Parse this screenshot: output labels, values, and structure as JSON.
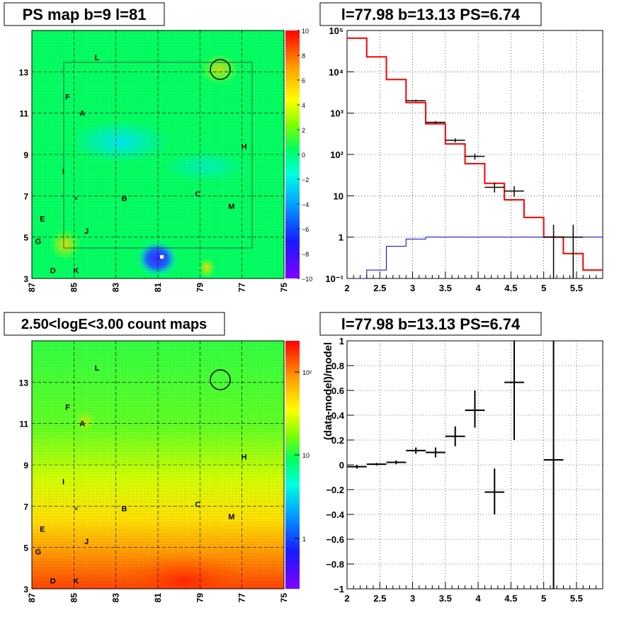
{
  "panels": {
    "ps_map": {
      "title": "PS map b=9 l=81",
      "x_ticks": [
        "87",
        "85",
        "83",
        "81",
        "79",
        "77",
        "75"
      ],
      "y_ticks": [
        "3",
        "5",
        "7",
        "9",
        "11",
        "13"
      ],
      "colorbar_ticks": [
        "10",
        "8",
        "6",
        "4",
        "2",
        "0",
        "−2",
        "−4",
        "−6",
        "−8",
        "−10"
      ]
    },
    "count_map": {
      "title": "2.50<logE<3.00 count maps",
      "x_ticks": [
        "87",
        "85",
        "83",
        "81",
        "79",
        "77",
        "75"
      ],
      "y_ticks": [
        "3",
        "5",
        "7",
        "9",
        "11",
        "13"
      ],
      "colorbar_ticks": [
        "10²",
        "10",
        "1"
      ]
    },
    "source_labels": [
      {
        "t": "L",
        "l": 83.9,
        "b": 13.7
      },
      {
        "t": "F",
        "l": 85.3,
        "b": 11.8
      },
      {
        "t": "A",
        "l": 84.6,
        "b": 11.0
      },
      {
        "t": "H",
        "l": 76.9,
        "b": 9.4
      },
      {
        "t": "I",
        "l": 85.5,
        "b": 8.2
      },
      {
        "t": "B",
        "l": 82.6,
        "b": 6.9
      },
      {
        "t": "C",
        "l": 79.1,
        "b": 7.1
      },
      {
        "t": "M",
        "l": 77.5,
        "b": 6.5
      },
      {
        "t": "E",
        "l": 86.5,
        "b": 5.9
      },
      {
        "t": "J",
        "l": 84.4,
        "b": 5.3
      },
      {
        "t": "G",
        "l": 86.7,
        "b": 4.8
      },
      {
        "t": "D",
        "l": 86.0,
        "b": 3.4
      },
      {
        "t": "K",
        "l": 84.9,
        "b": 3.4
      }
    ],
    "spectrum": {
      "title": "l=77.98 b=13.13 PS=6.74"
    },
    "residual": {
      "title": "l=77.98 b=13.13 PS=6.74",
      "ylabel": "(data-model)/model"
    }
  },
  "chart_data": [
    {
      "type": "heatmap",
      "title": "PS map b=9 l=81",
      "x_range": [
        87,
        75
      ],
      "y_range": [
        3,
        15
      ],
      "z_range": [
        -10,
        10
      ],
      "marked_position": {
        "l": 77.98,
        "b": 13.13
      }
    },
    {
      "type": "heatmap",
      "title": "2.50<logE<3.00 count maps",
      "x_range": [
        87,
        75
      ],
      "y_range": [
        3,
        15
      ],
      "z_scale": "log",
      "z_range": [
        0.3,
        300
      ],
      "marked_position": {
        "l": 77.98,
        "b": 13.13
      }
    },
    {
      "type": "line",
      "title": "l=77.98 b=13.13 PS=6.74",
      "yscale": "log",
      "xlim": [
        2,
        5.9
      ],
      "ylim": [
        0.1,
        100000
      ],
      "grid": true,
      "bin_edges": [
        2.0,
        2.3,
        2.6,
        2.9,
        3.2,
        3.5,
        3.8,
        4.1,
        4.4,
        4.7,
        5.0,
        5.3,
        5.6,
        5.9
      ],
      "series": [
        {
          "color": "#ff0000",
          "values": [
            65000,
            23000,
            6500,
            1800,
            550,
            180,
            60,
            20,
            8,
            3,
            1,
            0.4,
            0.16
          ]
        },
        {
          "color": "#0000cc",
          "values": [
            0.1,
            0.16,
            0.6,
            0.9,
            1,
            1,
            1,
            1,
            1,
            1,
            1,
            1,
            1
          ]
        },
        {
          "color": "#000000",
          "points": [
            {
              "x": 3.05,
              "y": 2000,
              "lo": 1900,
              "hi": 2100
            },
            {
              "x": 3.35,
              "y": 600,
              "lo": 560,
              "hi": 640
            },
            {
              "x": 3.65,
              "y": 220,
              "lo": 195,
              "hi": 245
            },
            {
              "x": 3.95,
              "y": 90,
              "lo": 75,
              "hi": 105
            },
            {
              "x": 4.25,
              "y": 16,
              "lo": 12,
              "hi": 21
            },
            {
              "x": 4.55,
              "y": 13,
              "lo": 9.5,
              "hi": 17
            },
            {
              "x": 5.15,
              "y": 1,
              "lo": 0.1,
              "hi": 2
            },
            {
              "x": 5.45,
              "y": 1,
              "lo": 0.1,
              "hi": 2
            }
          ]
        }
      ]
    },
    {
      "type": "scatter",
      "title": "l=77.98 b=13.13 PS=6.74",
      "ylabel": "(data-model)/model",
      "xlim": [
        2,
        5.9
      ],
      "ylim": [
        -1,
        1
      ],
      "grid": true,
      "points": [
        {
          "x": 2.15,
          "y": -0.015,
          "xerr": 0.15,
          "lo": -0.03,
          "hi": 0.0
        },
        {
          "x": 2.45,
          "y": 0.005,
          "xerr": 0.15,
          "lo": -0.005,
          "hi": 0.015
        },
        {
          "x": 2.75,
          "y": 0.02,
          "xerr": 0.15,
          "lo": 0.005,
          "hi": 0.035
        },
        {
          "x": 3.05,
          "y": 0.115,
          "xerr": 0.15,
          "lo": 0.09,
          "hi": 0.14
        },
        {
          "x": 3.35,
          "y": 0.1,
          "xerr": 0.15,
          "lo": 0.06,
          "hi": 0.14
        },
        {
          "x": 3.65,
          "y": 0.23,
          "xerr": 0.15,
          "lo": 0.15,
          "hi": 0.31
        },
        {
          "x": 3.95,
          "y": 0.44,
          "xerr": 0.15,
          "lo": 0.3,
          "hi": 0.6
        },
        {
          "x": 4.25,
          "y": -0.22,
          "xerr": 0.15,
          "lo": -0.4,
          "hi": -0.03
        },
        {
          "x": 4.55,
          "y": 0.665,
          "xerr": 0.15,
          "lo": 0.2,
          "hi": 1.0
        },
        {
          "x": 5.15,
          "y": 0.04,
          "xerr": 0.15,
          "lo": -1.0,
          "hi": 1.0
        }
      ]
    }
  ]
}
